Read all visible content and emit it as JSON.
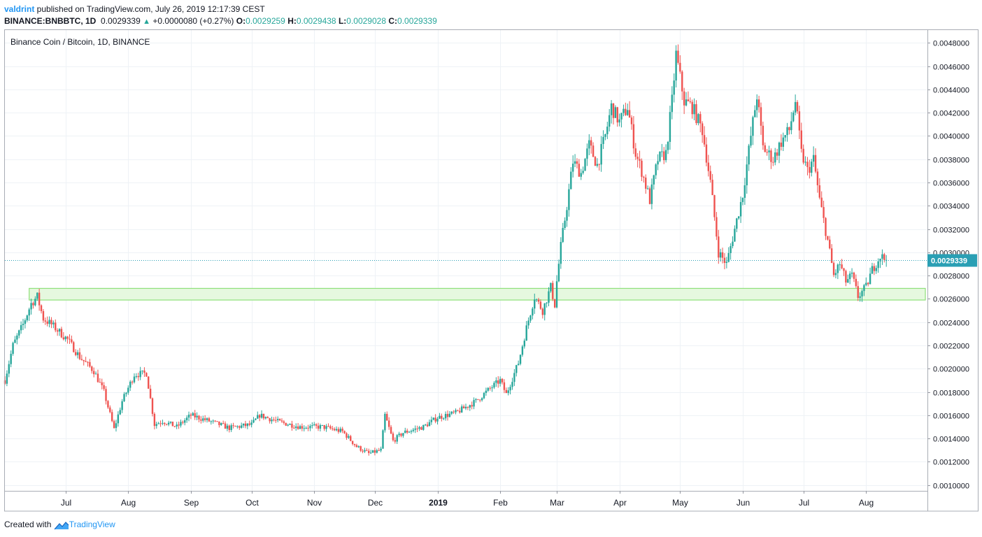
{
  "header": {
    "author": "valdrint",
    "published_text": " published on TradingView.com, July 26, 2019 12:17:39 CEST",
    "symbol": "BINANCE:BNBBTC, 1D",
    "last": "0.0029339",
    "change_arrow": "▲",
    "change": "+0.0000080 (+0.27%)",
    "o_label": "O:",
    "o_value": "0.0029259",
    "h_label": "H:",
    "h_value": "0.0029438",
    "l_label": "L:",
    "l_value": "0.0029028",
    "c_label": "C:",
    "c_value": "0.0029339"
  },
  "footer": {
    "created_with": "Created with",
    "brand": "TradingView"
  },
  "colors": {
    "up": "#26a69a",
    "down": "#ef5350",
    "zone_fill": "#e6f8df",
    "zone_stroke": "#8fe07a",
    "price_line": "#2a9fb4",
    "grid": "#eef2f6",
    "axis": "#9598a1"
  },
  "chart_data": {
    "type": "candlestick",
    "title": "Binance Coin / Bitcoin, 1D, BINANCE",
    "ylim": [
      0.00095,
      0.00491
    ],
    "x_range": [
      "2018-06-01",
      "2019-08-31"
    ],
    "y_ticks": [
      "0.0010000",
      "0.0012000",
      "0.0014000",
      "0.0016000",
      "0.0018000",
      "0.0020000",
      "0.0022000",
      "0.0024000",
      "0.0026000",
      "0.0028000",
      "0.0030000",
      "0.0032000",
      "0.0034000",
      "0.0036000",
      "0.0038000",
      "0.0040000",
      "0.0042000",
      "0.0044000",
      "0.0046000",
      "0.0048000"
    ],
    "x_ticks": [
      {
        "label": "Jul",
        "date": "2018-07-01"
      },
      {
        "label": "Aug",
        "date": "2018-08-01"
      },
      {
        "label": "Sep",
        "date": "2018-09-01"
      },
      {
        "label": "Oct",
        "date": "2018-10-01"
      },
      {
        "label": "Nov",
        "date": "2018-11-01"
      },
      {
        "label": "Dec",
        "date": "2018-12-01"
      },
      {
        "label": "2019",
        "date": "2019-01-01",
        "bold": true
      },
      {
        "label": "Feb",
        "date": "2019-02-01"
      },
      {
        "label": "Mar",
        "date": "2019-03-01"
      },
      {
        "label": "Apr",
        "date": "2019-04-01"
      },
      {
        "label": "May",
        "date": "2019-05-01"
      },
      {
        "label": "Jun",
        "date": "2019-06-01"
      },
      {
        "label": "Jul",
        "date": "2019-07-01"
      },
      {
        "label": "Aug",
        "date": "2019-08-01"
      }
    ],
    "last_price": 0.0029339,
    "last_price_label": "0.0029339",
    "support_zone": {
      "from_date": "2018-06-13",
      "low": 0.00259,
      "high": 0.00269
    },
    "price_path": [
      {
        "date": "2018-06-01",
        "price": 0.0019
      },
      {
        "date": "2018-06-05",
        "price": 0.0022
      },
      {
        "date": "2018-06-10",
        "price": 0.00238
      },
      {
        "date": "2018-06-14",
        "price": 0.00256
      },
      {
        "date": "2018-06-17",
        "price": 0.00262
      },
      {
        "date": "2018-06-20",
        "price": 0.00243
      },
      {
        "date": "2018-06-24",
        "price": 0.00238
      },
      {
        "date": "2018-07-02",
        "price": 0.00225
      },
      {
        "date": "2018-07-08",
        "price": 0.0021
      },
      {
        "date": "2018-07-15",
        "price": 0.00198
      },
      {
        "date": "2018-07-20",
        "price": 0.0018
      },
      {
        "date": "2018-07-25",
        "price": 0.00148
      },
      {
        "date": "2018-07-29",
        "price": 0.00172
      },
      {
        "date": "2018-08-04",
        "price": 0.00195
      },
      {
        "date": "2018-08-10",
        "price": 0.00196
      },
      {
        "date": "2018-08-14",
        "price": 0.00152
      },
      {
        "date": "2018-08-18",
        "price": 0.00155
      },
      {
        "date": "2018-08-25",
        "price": 0.0015
      },
      {
        "date": "2018-09-01",
        "price": 0.0016
      },
      {
        "date": "2018-09-10",
        "price": 0.00155
      },
      {
        "date": "2018-09-20",
        "price": 0.00149
      },
      {
        "date": "2018-10-01",
        "price": 0.00152
      },
      {
        "date": "2018-10-05",
        "price": 0.0016
      },
      {
        "date": "2018-10-15",
        "price": 0.00154
      },
      {
        "date": "2018-10-25",
        "price": 0.0015
      },
      {
        "date": "2018-11-05",
        "price": 0.0015
      },
      {
        "date": "2018-11-15",
        "price": 0.00146
      },
      {
        "date": "2018-11-22",
        "price": 0.00133
      },
      {
        "date": "2018-11-28",
        "price": 0.00127
      },
      {
        "date": "2018-12-04",
        "price": 0.0013
      },
      {
        "date": "2018-12-06",
        "price": 0.0016
      },
      {
        "date": "2018-12-10",
        "price": 0.00138
      },
      {
        "date": "2018-12-15",
        "price": 0.00145
      },
      {
        "date": "2018-12-25",
        "price": 0.0015
      },
      {
        "date": "2019-01-01",
        "price": 0.00158
      },
      {
        "date": "2019-01-10",
        "price": 0.00162
      },
      {
        "date": "2019-01-20",
        "price": 0.00172
      },
      {
        "date": "2019-01-27",
        "price": 0.00183
      },
      {
        "date": "2019-02-01",
        "price": 0.0019
      },
      {
        "date": "2019-02-04",
        "price": 0.00178
      },
      {
        "date": "2019-02-10",
        "price": 0.00205
      },
      {
        "date": "2019-02-14",
        "price": 0.00235
      },
      {
        "date": "2019-02-18",
        "price": 0.00262
      },
      {
        "date": "2019-02-22",
        "price": 0.0025
      },
      {
        "date": "2019-02-26",
        "price": 0.0027
      },
      {
        "date": "2019-02-28",
        "price": 0.00255
      },
      {
        "date": "2019-03-01",
        "price": 0.00275
      },
      {
        "date": "2019-03-03",
        "price": 0.00305
      },
      {
        "date": "2019-03-06",
        "price": 0.0034
      },
      {
        "date": "2019-03-09",
        "price": 0.00378
      },
      {
        "date": "2019-03-13",
        "price": 0.00368
      },
      {
        "date": "2019-03-17",
        "price": 0.00392
      },
      {
        "date": "2019-03-21",
        "price": 0.00375
      },
      {
        "date": "2019-03-25",
        "price": 0.004
      },
      {
        "date": "2019-03-28",
        "price": 0.00425
      },
      {
        "date": "2019-04-01",
        "price": 0.00412
      },
      {
        "date": "2019-04-05",
        "price": 0.00425
      },
      {
        "date": "2019-04-09",
        "price": 0.00385
      },
      {
        "date": "2019-04-12",
        "price": 0.0037
      },
      {
        "date": "2019-04-16",
        "price": 0.00345
      },
      {
        "date": "2019-04-20",
        "price": 0.0038
      },
      {
        "date": "2019-04-24",
        "price": 0.00385
      },
      {
        "date": "2019-04-27",
        "price": 0.0043
      },
      {
        "date": "2019-04-29",
        "price": 0.0047
      },
      {
        "date": "2019-05-03",
        "price": 0.0043
      },
      {
        "date": "2019-05-07",
        "price": 0.00425
      },
      {
        "date": "2019-05-12",
        "price": 0.00405
      },
      {
        "date": "2019-05-16",
        "price": 0.0036
      },
      {
        "date": "2019-05-20",
        "price": 0.003
      },
      {
        "date": "2019-05-24",
        "price": 0.0029
      },
      {
        "date": "2019-05-28",
        "price": 0.0032
      },
      {
        "date": "2019-06-01",
        "price": 0.0035
      },
      {
        "date": "2019-06-05",
        "price": 0.004
      },
      {
        "date": "2019-06-08",
        "price": 0.00435
      },
      {
        "date": "2019-06-11",
        "price": 0.0039
      },
      {
        "date": "2019-06-16",
        "price": 0.0038
      },
      {
        "date": "2019-06-20",
        "price": 0.00395
      },
      {
        "date": "2019-06-24",
        "price": 0.00405
      },
      {
        "date": "2019-06-27",
        "price": 0.0043
      },
      {
        "date": "2019-06-30",
        "price": 0.00385
      },
      {
        "date": "2019-07-03",
        "price": 0.0037
      },
      {
        "date": "2019-07-06",
        "price": 0.0038
      },
      {
        "date": "2019-07-09",
        "price": 0.00345
      },
      {
        "date": "2019-07-13",
        "price": 0.0031
      },
      {
        "date": "2019-07-16",
        "price": 0.0028
      },
      {
        "date": "2019-07-19",
        "price": 0.0029
      },
      {
        "date": "2019-07-22",
        "price": 0.00275
      },
      {
        "date": "2019-07-25",
        "price": 0.0028
      },
      {
        "date": "2019-07-28",
        "price": 0.00262
      },
      {
        "date": "2019-08-01",
        "price": 0.0027
      },
      {
        "date": "2019-08-04",
        "price": 0.00285
      },
      {
        "date": "2019-08-08",
        "price": 0.00297
      },
      {
        "date": "2019-08-11",
        "price": 0.00293
      }
    ]
  }
}
